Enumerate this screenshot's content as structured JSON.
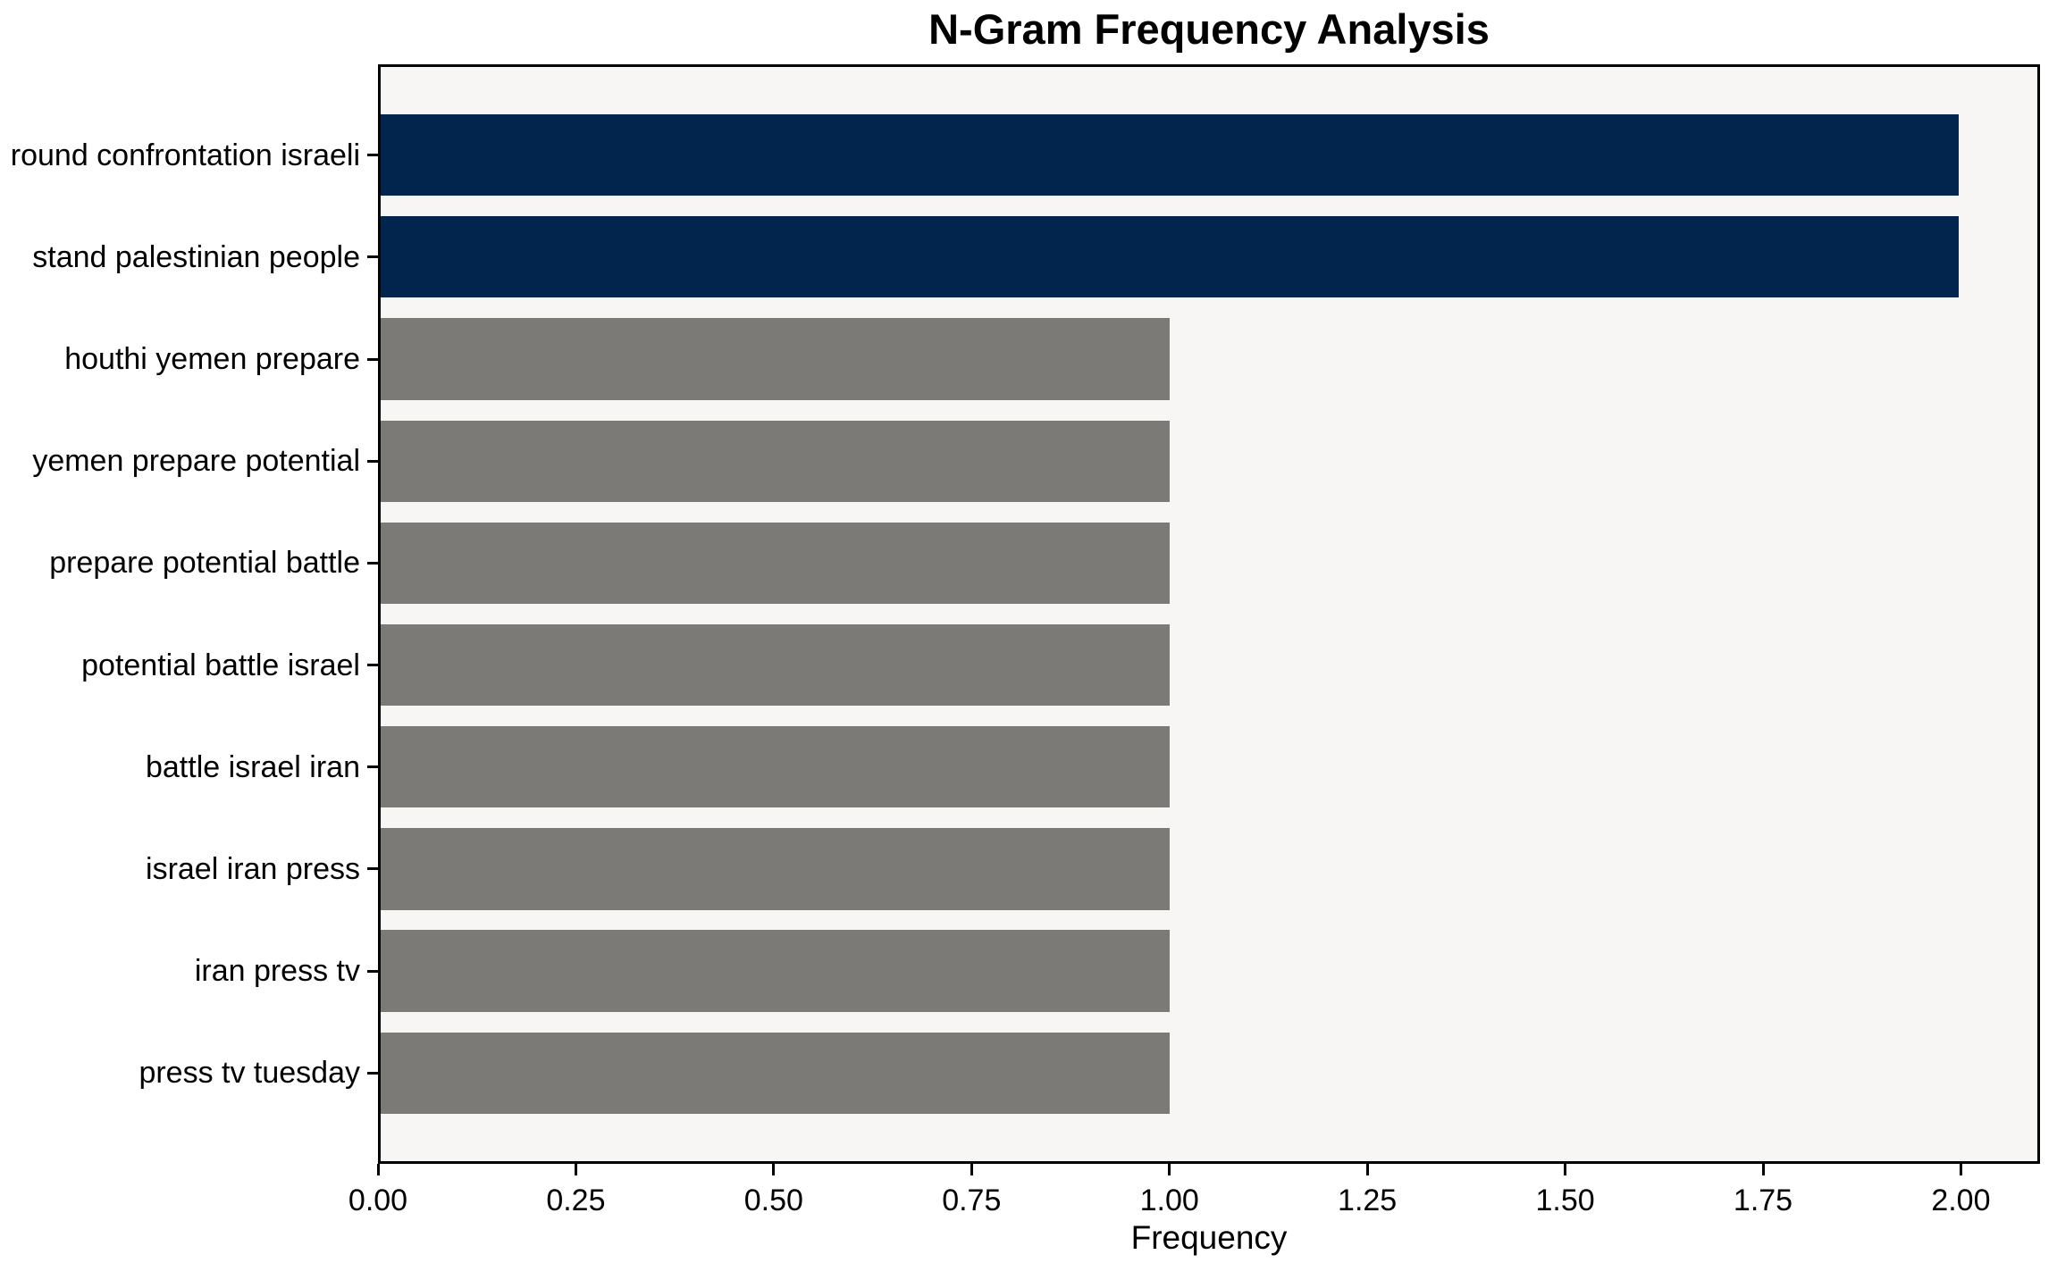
{
  "figure": {
    "background": "#ffffff",
    "axes_background": "#f7f6f5",
    "spine_color": "#000000",
    "highlight_color": "#02254e",
    "base_color": "#7b7a76"
  },
  "chart_data": {
    "type": "bar",
    "orientation": "horizontal",
    "title": "N-Gram Frequency Analysis",
    "xlabel": "Frequency",
    "ylabel": "",
    "grid": false,
    "legend_position": "none",
    "categories": [
      "round confrontation israeli",
      "stand palestinian people",
      "houthi yemen prepare",
      "yemen prepare potential",
      "prepare potential battle",
      "potential battle israel",
      "battle israel iran",
      "israel iran press",
      "iran press tv",
      "press tv tuesday"
    ],
    "series": [
      {
        "name": "Frequency",
        "values": [
          2,
          2,
          1,
          1,
          1,
          1,
          1,
          1,
          1,
          1
        ]
      }
    ],
    "bar_colors": [
      "#02254e",
      "#02254e",
      "#7b7a76",
      "#7b7a76",
      "#7b7a76",
      "#7b7a76",
      "#7b7a76",
      "#7b7a76",
      "#7b7a76",
      "#7b7a76"
    ],
    "xlim": [
      0,
      2.1
    ],
    "xtick_values": [
      0,
      0.25,
      0.5,
      0.75,
      1.0,
      1.25,
      1.5,
      1.75,
      2.0
    ],
    "xtick_labels": [
      "0.00",
      "0.25",
      "0.50",
      "0.75",
      "1.00",
      "1.25",
      "1.50",
      "1.75",
      "2.00"
    ]
  }
}
